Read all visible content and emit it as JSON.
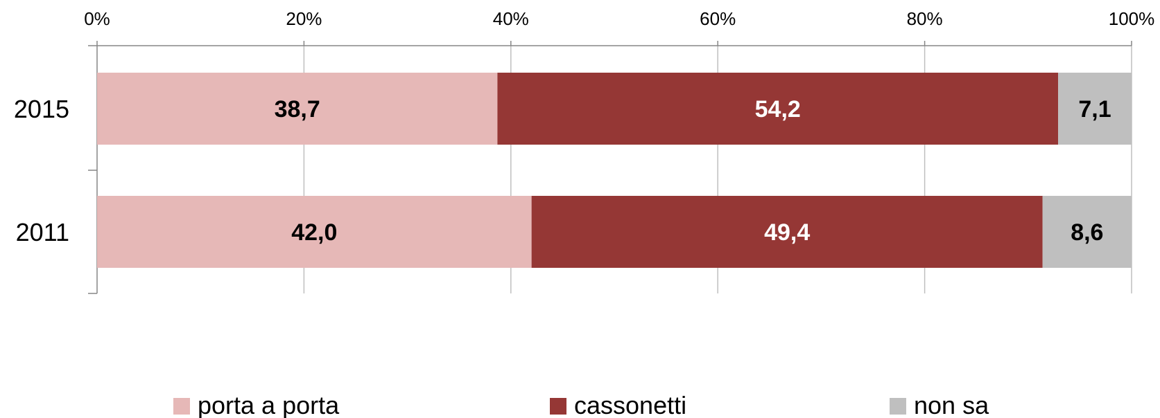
{
  "chart_data": {
    "type": "bar",
    "orientation": "horizontal",
    "stacking": "percent",
    "categories": [
      "2015",
      "2011"
    ],
    "series": [
      {
        "name": "porta a porta",
        "color": "#e6b8b7",
        "label_color": "#000000",
        "values": [
          38.7,
          42.0
        ],
        "labels": [
          "38,7",
          "42,0"
        ]
      },
      {
        "name": "cassonetti",
        "color": "#953735",
        "label_color": "#ffffff",
        "values": [
          54.2,
          49.4
        ],
        "labels": [
          "54,2",
          "49,4"
        ]
      },
      {
        "name": "non sa",
        "color": "#bfbfbf",
        "label_color": "#000000",
        "values": [
          7.1,
          8.6
        ],
        "labels": [
          "7,1",
          "8,6"
        ]
      }
    ],
    "xlim": [
      0,
      100
    ],
    "xticks": [
      0,
      20,
      40,
      60,
      80,
      100
    ],
    "xtick_labels": [
      "0%",
      "20%",
      "40%",
      "60%",
      "80%",
      "100%"
    ],
    "grid": true,
    "axis_position": "top",
    "legend_position": "bottom"
  }
}
